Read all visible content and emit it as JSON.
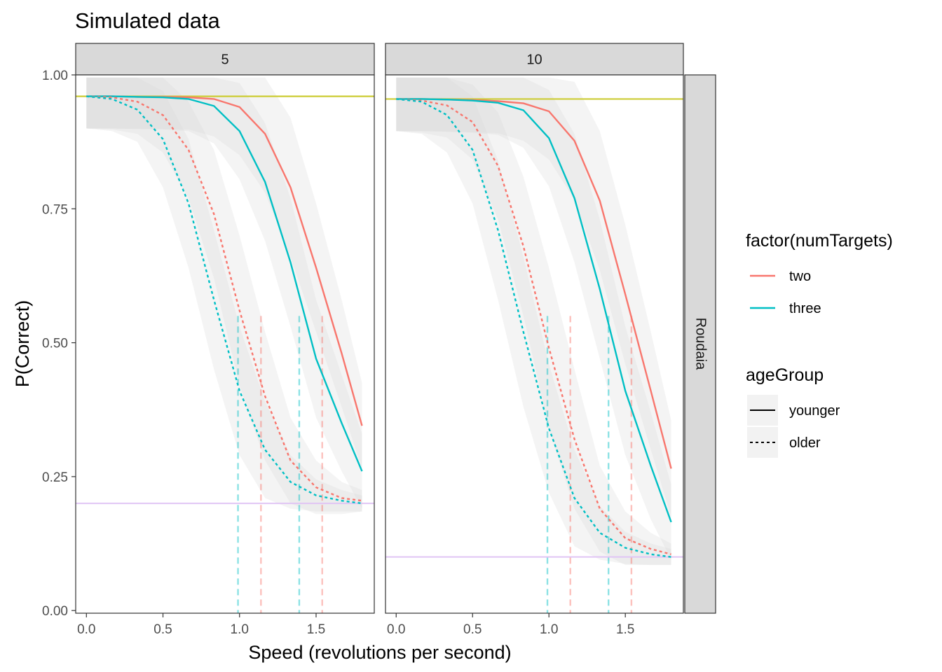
{
  "chart_data": {
    "type": "line",
    "title": "Simulated data",
    "xlabel": "Speed (revolutions per second)",
    "ylabel": "P(Correct)",
    "xlim": [
      -0.07,
      1.88
    ],
    "ylim": [
      -0.005,
      1.0
    ],
    "x_ticks": [
      0.0,
      0.5,
      1.0,
      1.5
    ],
    "x_tick_labels": [
      "0.0",
      "0.5",
      "1.0",
      "1.5"
    ],
    "y_ticks": [
      0.0,
      0.25,
      0.5,
      0.75,
      1.0
    ],
    "y_tick_labels": [
      "0.00",
      "0.25",
      "0.50",
      "0.75",
      "1.00"
    ],
    "grid": false,
    "facet_row_label": "Roudaia",
    "legend": {
      "placement": "right",
      "color_title": "factor(numTargets)",
      "color_entries": [
        {
          "label": "two",
          "color": "#f8766d"
        },
        {
          "label": "three",
          "color": "#00bfc4"
        }
      ],
      "linetype_title": "ageGroup",
      "linetype_entries": [
        {
          "label": "younger",
          "dash": "solid"
        },
        {
          "label": "older",
          "dash": "dashed"
        }
      ]
    },
    "x": [
      0.0,
      0.167,
      0.333,
      0.5,
      0.667,
      0.833,
      1.0,
      1.167,
      1.333,
      1.5,
      1.667,
      1.8
    ],
    "panels": [
      {
        "strip_label": "5",
        "upper_asymptote": 0.96,
        "chance": 0.2,
        "thresholds": [
          {
            "x": 0.99,
            "color": "#00bfc4"
          },
          {
            "x": 1.14,
            "color": "#f8766d"
          },
          {
            "x": 1.39,
            "color": "#00bfc4"
          },
          {
            "x": 1.54,
            "color": "#f8766d"
          }
        ],
        "series": [
          {
            "name": "two",
            "linetype": "younger",
            "color": "#f8766d",
            "values": [
              0.96,
              0.96,
              0.959,
              0.959,
              0.958,
              0.955,
              0.94,
              0.89,
              0.79,
              0.64,
              0.48,
              0.345
            ],
            "band": [
              0.06,
              0.06,
              0.06,
              0.06,
              0.06,
              0.07,
              0.09,
              0.11,
              0.13,
              0.12,
              0.1,
              0.08
            ]
          },
          {
            "name": "three",
            "linetype": "younger",
            "color": "#00bfc4",
            "values": [
              0.96,
              0.96,
              0.959,
              0.958,
              0.955,
              0.942,
              0.895,
              0.8,
              0.65,
              0.47,
              0.35,
              0.26
            ],
            "band": [
              0.06,
              0.06,
              0.06,
              0.06,
              0.06,
              0.07,
              0.09,
              0.11,
              0.12,
              0.11,
              0.09,
              0.07
            ]
          },
          {
            "name": "two",
            "linetype": "older",
            "color": "#f8766d",
            "values": [
              0.96,
              0.958,
              0.95,
              0.925,
              0.86,
              0.74,
              0.56,
              0.4,
              0.28,
              0.23,
              0.21,
              0.205
            ],
            "band": [
              0.06,
              0.06,
              0.06,
              0.07,
              0.09,
              0.12,
              0.14,
              0.12,
              0.08,
              0.05,
              0.03,
              0.02
            ]
          },
          {
            "name": "three",
            "linetype": "older",
            "color": "#00bfc4",
            "values": [
              0.96,
              0.955,
              0.935,
              0.88,
              0.76,
              0.58,
              0.41,
              0.3,
              0.24,
              0.215,
              0.205,
              0.2
            ],
            "band": [
              0.06,
              0.06,
              0.06,
              0.09,
              0.12,
              0.13,
              0.12,
              0.09,
              0.05,
              0.03,
              0.02,
              0.015
            ]
          }
        ]
      },
      {
        "strip_label": "10",
        "upper_asymptote": 0.955,
        "chance": 0.1,
        "thresholds": [
          {
            "x": 0.99,
            "color": "#00bfc4"
          },
          {
            "x": 1.14,
            "color": "#f8766d"
          },
          {
            "x": 1.39,
            "color": "#00bfc4"
          },
          {
            "x": 1.54,
            "color": "#f8766d"
          }
        ],
        "series": [
          {
            "name": "two",
            "linetype": "younger",
            "color": "#f8766d",
            "values": [
              0.955,
              0.955,
              0.954,
              0.953,
              0.951,
              0.947,
              0.932,
              0.877,
              0.765,
              0.59,
              0.41,
              0.265
            ],
            "band": [
              0.06,
              0.06,
              0.06,
              0.06,
              0.06,
              0.07,
              0.09,
              0.11,
              0.13,
              0.13,
              0.11,
              0.09
            ]
          },
          {
            "name": "three",
            "linetype": "younger",
            "color": "#00bfc4",
            "values": [
              0.955,
              0.955,
              0.954,
              0.952,
              0.948,
              0.934,
              0.882,
              0.77,
              0.6,
              0.41,
              0.27,
              0.165
            ],
            "band": [
              0.06,
              0.06,
              0.06,
              0.06,
              0.06,
              0.07,
              0.09,
              0.12,
              0.13,
              0.12,
              0.1,
              0.07
            ]
          },
          {
            "name": "two",
            "linetype": "older",
            "color": "#f8766d",
            "values": [
              0.955,
              0.952,
              0.943,
              0.912,
              0.83,
              0.68,
              0.49,
              0.32,
              0.19,
              0.135,
              0.115,
              0.105
            ],
            "band": [
              0.06,
              0.06,
              0.06,
              0.07,
              0.1,
              0.13,
              0.15,
              0.13,
              0.08,
              0.05,
              0.03,
              0.02
            ]
          },
          {
            "name": "three",
            "linetype": "older",
            "color": "#00bfc4",
            "values": [
              0.955,
              0.95,
              0.925,
              0.86,
              0.71,
              0.52,
              0.34,
              0.21,
              0.145,
              0.117,
              0.105,
              0.1
            ],
            "band": [
              0.06,
              0.06,
              0.07,
              0.1,
              0.13,
              0.14,
              0.12,
              0.09,
              0.05,
              0.03,
              0.02,
              0.015
            ]
          }
        ]
      }
    ],
    "reference_line_colors": {
      "upper": "#cccc33",
      "chance": "#e0c4f4"
    }
  }
}
